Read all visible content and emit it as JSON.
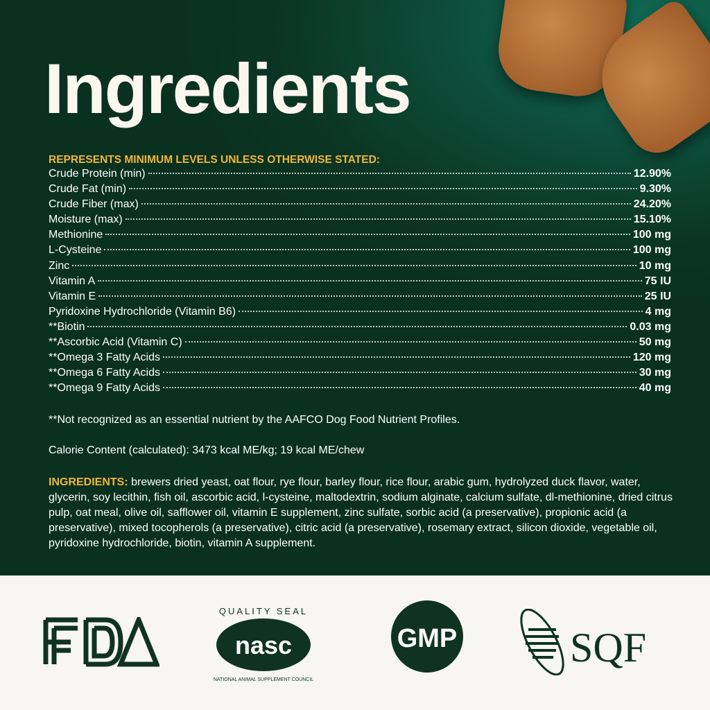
{
  "title": "Ingredients",
  "analysis": {
    "header": "REPRESENTS MINIMUM LEVELS UNLESS OTHERWISE STATED:",
    "rows": [
      {
        "name": "Crude Protein (min)",
        "value": "12.90%"
      },
      {
        "name": "Crude Fat (min)",
        "value": "9.30%"
      },
      {
        "name": "Crude Fiber (max)",
        "value": "24.20%"
      },
      {
        "name": "Moisture (max)",
        "value": "15.10%"
      },
      {
        "name": "Methionine",
        "value": "100 mg"
      },
      {
        "name": "L-Cysteine",
        "value": "100 mg"
      },
      {
        "name": "Zinc",
        "value": "10 mg"
      },
      {
        "name": "Vitamin A",
        "value": "75 IU"
      },
      {
        "name": "Vitamin E",
        "value": "25 IU"
      },
      {
        "name": "Pyridoxine Hydrochloride (Vitamin B6)",
        "value": "4 mg"
      },
      {
        "name": "**Biotin",
        "value": "0.03 mg"
      },
      {
        "name": "**Ascorbic Acid (Vitamin C)",
        "value": "50 mg"
      },
      {
        "name": "**Omega 3 Fatty Acids",
        "value": "120 mg"
      },
      {
        "name": "**Omega 6 Fatty Acids",
        "value": "30 mg"
      },
      {
        "name": "**Omega 9 Fatty Acids",
        "value": "40 mg"
      }
    ]
  },
  "note": "**Not recognized as an essential nutrient by the AAFCO Dog Food Nutrient Profiles.",
  "calorie": "Calorie Content (calculated): 3473 kcal ME/kg; 19 kcal ME/chew",
  "ingredients": {
    "label": "INGREDIENTS:",
    "text": " brewers dried yeast, oat flour, rye flour, barley flour, rice flour, arabic gum, hydrolyzed duck flavor, water, glycerin, soy lecithin, fish oil, ascorbic acid, l-cysteine, maltodextrin, sodium alginate, calcium sulfate, dl-methionine, dried citrus pulp, oat meal, olive oil, safflower oil, vitamin E supplement, zinc sulfate, sorbic acid (a preservative), propionic acid (a preservative), mixed tocopherols (a preservative), citric acid (a preservative), rosemary extract, silicon dioxide, vegetable oil, pyridoxine hydrochloride, biotin, vitamin A supplement."
  },
  "logos": {
    "fda": "FDA",
    "nasc_top": "QUALITY SEAL",
    "nasc_mid": "nasc",
    "nasc_bottom": "NATIONAL ANIMAL SUPPLEMENT COUNCIL",
    "gmp": "GMP",
    "sqf": "SQF"
  },
  "colors": {
    "background": "#0b3522",
    "accent": "#f0b63a",
    "logo": "#0f3320",
    "footer": "#f7f6f1"
  }
}
